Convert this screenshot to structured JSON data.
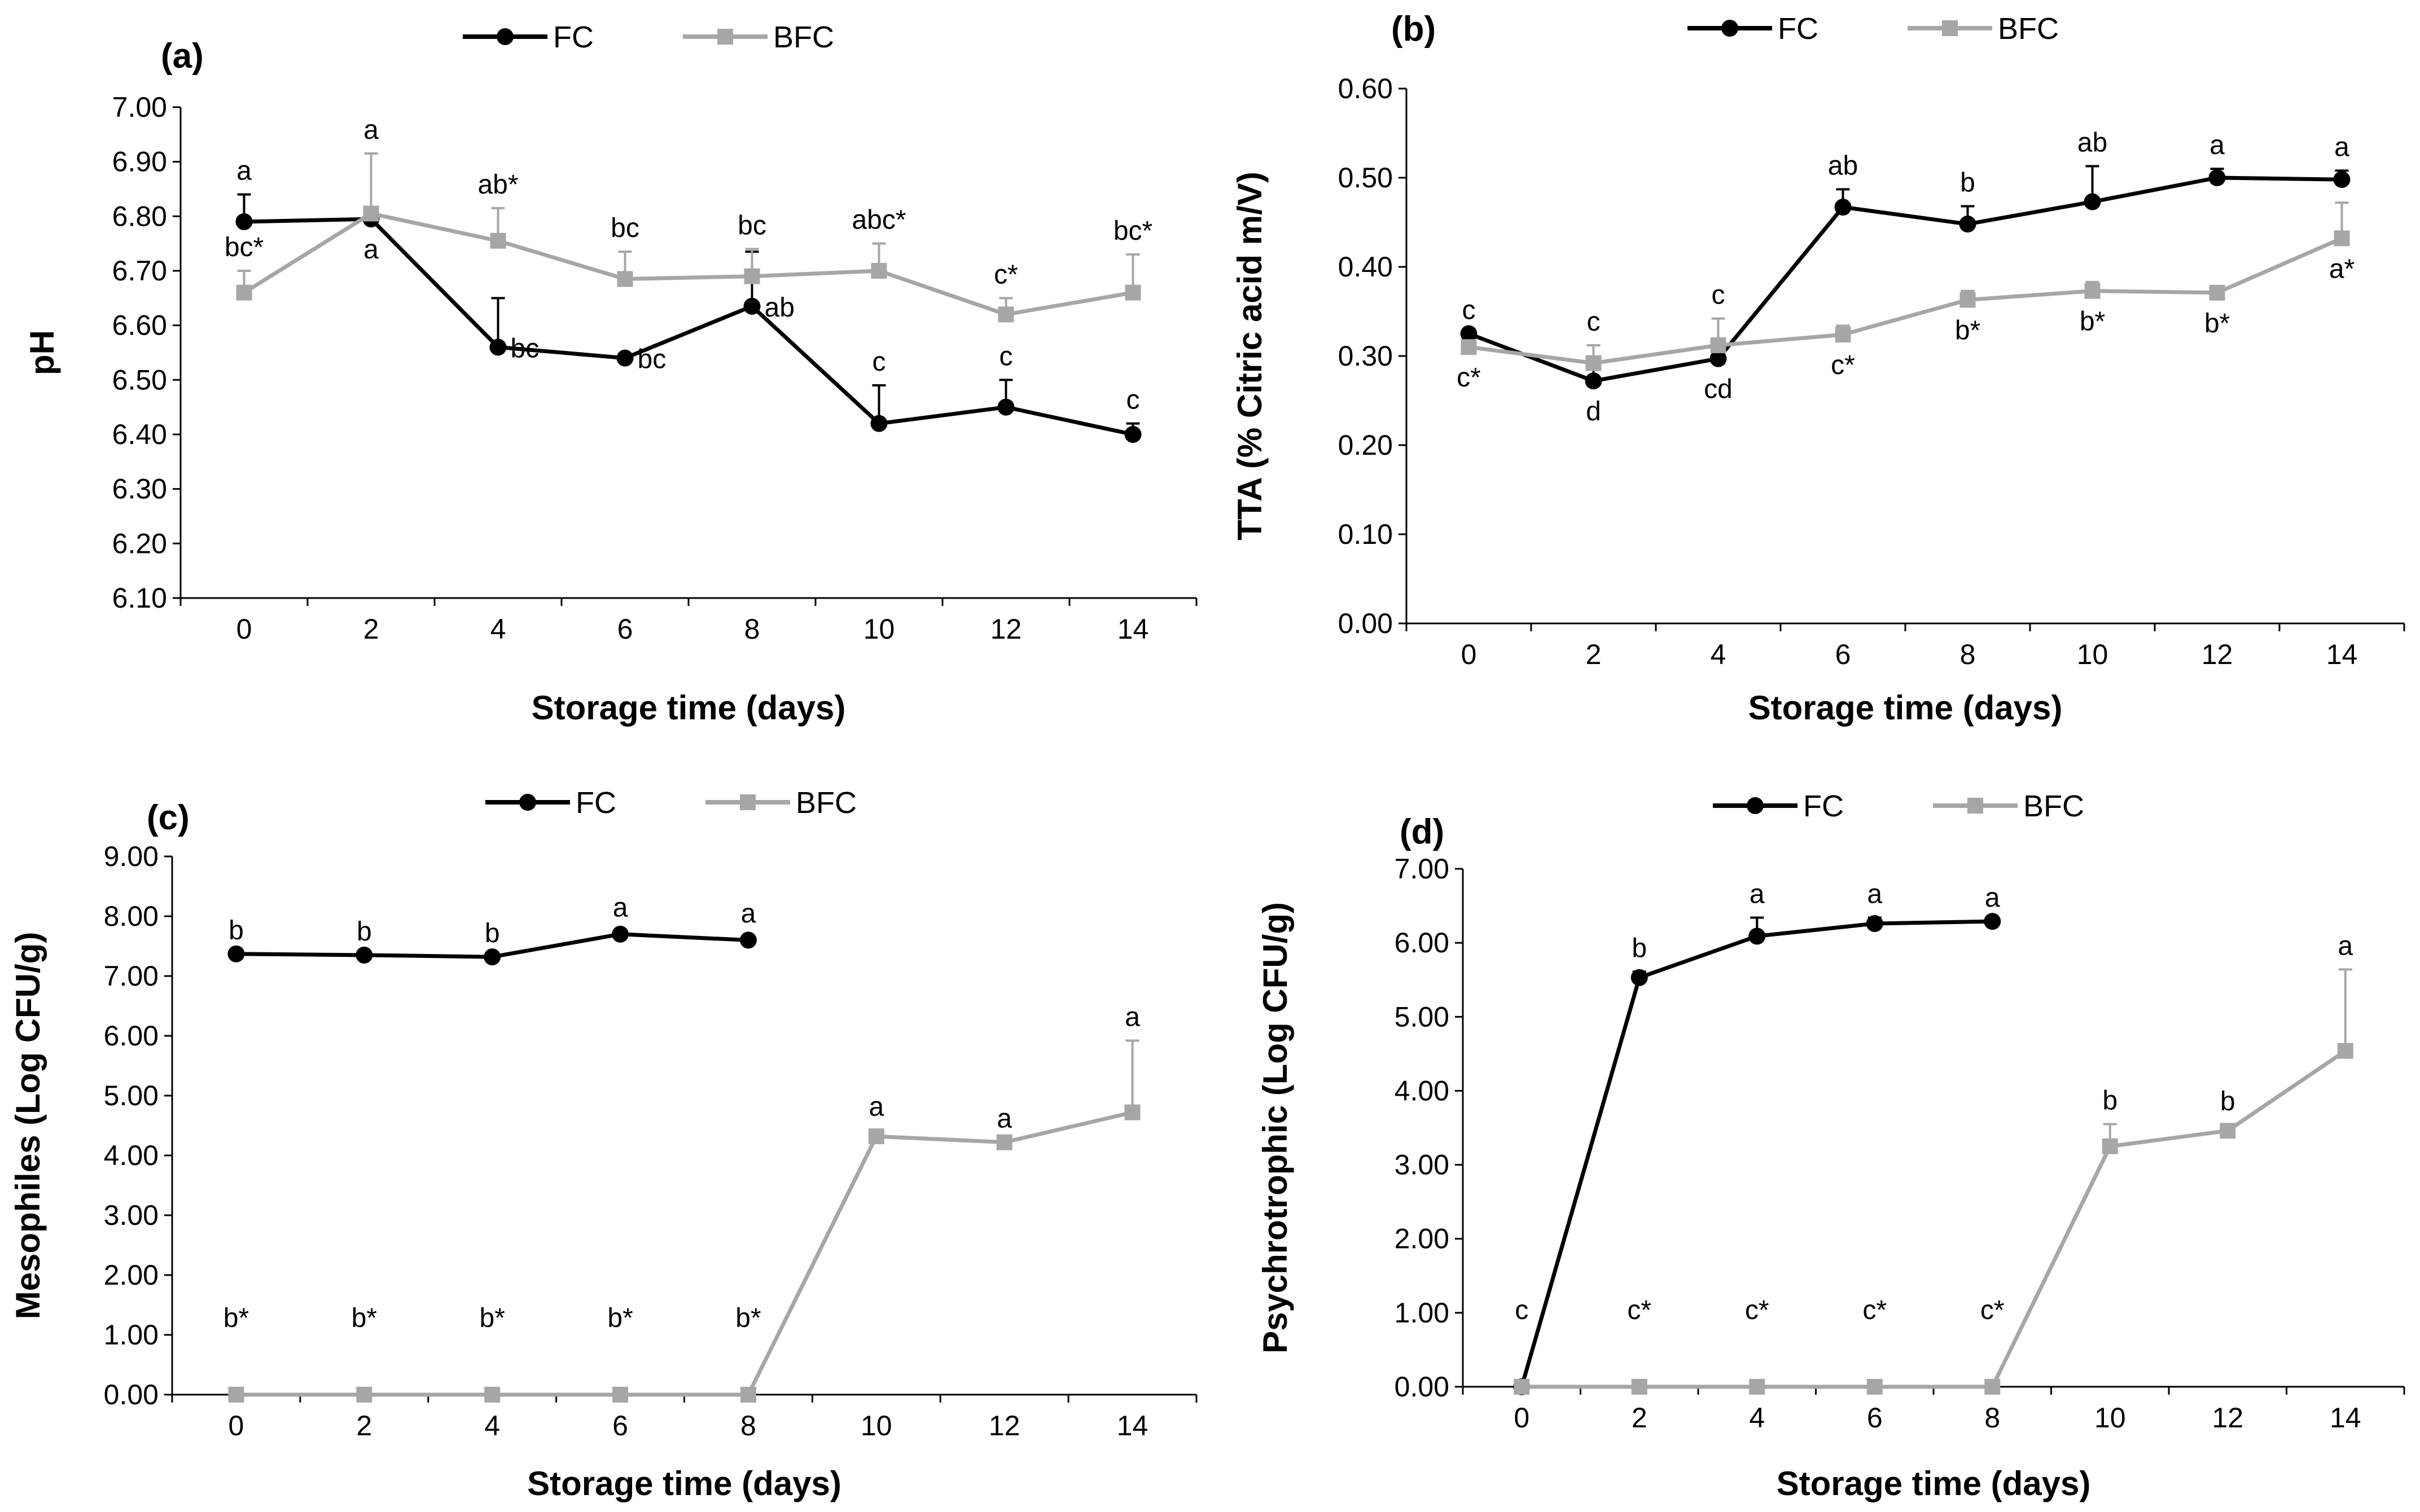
{
  "colors": {
    "FC": "#000000",
    "BFC": "#a6a6a6",
    "axis": "#000000"
  },
  "chart_data": [
    {
      "id": "a",
      "type": "line",
      "panel_label": "(a)",
      "title": "",
      "xlabel": "Storage time (days)",
      "ylabel": "pH",
      "ylim": [
        6.1,
        7.0
      ],
      "yticks": [
        6.1,
        6.2,
        6.3,
        6.4,
        6.5,
        6.6,
        6.7,
        6.8,
        6.9,
        7.0
      ],
      "ytick_labels": [
        "6.10",
        "6.20",
        "6.30",
        "6.40",
        "6.50",
        "6.60",
        "6.70",
        "6.80",
        "6.90",
        "7.00"
      ],
      "categories": [
        "0",
        "2",
        "4",
        "6",
        "8",
        "10",
        "12",
        "14"
      ],
      "legend": [
        "FC",
        "BFC"
      ],
      "series": [
        {
          "name": "FC",
          "values": [
            6.79,
            6.795,
            6.56,
            6.54,
            6.635,
            6.42,
            6.45,
            6.4
          ],
          "errors": [
            0.05,
            0,
            0.09,
            0,
            0.1,
            0.07,
            0.05,
            0.02
          ],
          "labels": [
            "a",
            "a",
            "bc",
            "bc",
            "ab",
            "c",
            "c",
            "c"
          ],
          "label_pos": [
            "above",
            "below",
            "right",
            "right",
            "right",
            "above",
            "above",
            "above"
          ]
        },
        {
          "name": "BFC",
          "values": [
            6.66,
            6.805,
            6.755,
            6.685,
            6.69,
            6.7,
            6.62,
            6.66
          ],
          "errors": [
            0.04,
            0.11,
            0.06,
            0.05,
            0.05,
            0.05,
            0.03,
            0.07
          ],
          "labels": [
            "bc*",
            "a",
            "ab*",
            "bc",
            "bc",
            "abc*",
            "c*",
            "bc*"
          ],
          "label_pos": [
            "above",
            "above",
            "above",
            "above",
            "above",
            "above",
            "above",
            "above"
          ]
        }
      ]
    },
    {
      "id": "b",
      "type": "line",
      "panel_label": "(b)",
      "title": "",
      "xlabel": "Storage time (days)",
      "ylabel": "TTA (% Citric acid m/V)",
      "ylim": [
        0.0,
        0.6
      ],
      "yticks": [
        0.0,
        0.1,
        0.2,
        0.3,
        0.4,
        0.5,
        0.6
      ],
      "ytick_labels": [
        "0.00",
        "0.10",
        "0.20",
        "0.30",
        "0.40",
        "0.50",
        "0.60"
      ],
      "categories": [
        "0",
        "2",
        "4",
        "6",
        "8",
        "10",
        "12",
        "14"
      ],
      "legend": [
        "FC",
        "BFC"
      ],
      "series": [
        {
          "name": "FC",
          "values": [
            0.325,
            0.272,
            0.297,
            0.467,
            0.448,
            0.473,
            0.5,
            0.498
          ],
          "errors": [
            0,
            0.02,
            0.015,
            0.02,
            0.02,
            0.04,
            0.01,
            0.01
          ],
          "labels": [
            "c",
            "d",
            "cd",
            "ab",
            "b",
            "ab",
            "a",
            "a"
          ],
          "label_pos": [
            "above",
            "below",
            "below",
            "above",
            "above",
            "above",
            "above",
            "above"
          ]
        },
        {
          "name": "BFC",
          "values": [
            0.31,
            0.292,
            0.312,
            0.324,
            0.363,
            0.373,
            0.371,
            0.432
          ],
          "errors": [
            0,
            0.02,
            0.03,
            0.01,
            0.01,
            0.01,
            0,
            0.04
          ],
          "labels": [
            "c*",
            "c",
            "c",
            "c*",
            "b*",
            "b*",
            "b*",
            "a*"
          ],
          "label_pos": [
            "below",
            "above",
            "above",
            "below",
            "below",
            "below",
            "below",
            "below"
          ]
        }
      ]
    },
    {
      "id": "c",
      "type": "line",
      "panel_label": "(c)",
      "title": "",
      "xlabel": "Storage time (days)",
      "ylabel": "Mesophiles (Log CFU/g)",
      "ylim": [
        0.0,
        9.0
      ],
      "yticks": [
        0,
        1,
        2,
        3,
        4,
        5,
        6,
        7,
        8,
        9
      ],
      "ytick_labels": [
        "0.00",
        "1.00",
        "2.00",
        "3.00",
        "4.00",
        "5.00",
        "6.00",
        "7.00",
        "8.00",
        "9.00"
      ],
      "categories": [
        "0",
        "2",
        "4",
        "6",
        "8",
        "10",
        "12",
        "14"
      ],
      "legend": [
        "FC",
        "BFC"
      ],
      "series": [
        {
          "name": "FC",
          "values": [
            7.37,
            7.35,
            7.32,
            7.7,
            7.6,
            null,
            null,
            null
          ],
          "errors": [
            0,
            0,
            0,
            0.05,
            0.05,
            0,
            0,
            0
          ],
          "labels": [
            "b",
            "b",
            "b",
            "a",
            "a",
            "",
            "",
            ""
          ],
          "label_pos": [
            "above",
            "above",
            "above",
            "above",
            "above",
            "above",
            "above",
            "above"
          ]
        },
        {
          "name": "BFC",
          "values": [
            0,
            0,
            0,
            0,
            0,
            4.32,
            4.22,
            4.72
          ],
          "errors": [
            0,
            0,
            0,
            0,
            0,
            0.1,
            0,
            1.2
          ],
          "labels": [
            "b*",
            "b*",
            "b*",
            "b*",
            "b*",
            "a",
            "a",
            "a"
          ],
          "label_pos": [
            "far-above",
            "far-above",
            "far-above",
            "far-above",
            "far-above",
            "above",
            "above",
            "above"
          ]
        }
      ]
    },
    {
      "id": "d",
      "type": "line",
      "panel_label": "(d)",
      "title": "",
      "xlabel": "Storage time (days)",
      "ylabel": "Psychrotrophic (Log CFU/g)",
      "ylim": [
        0.0,
        7.0
      ],
      "yticks": [
        0,
        1,
        2,
        3,
        4,
        5,
        6,
        7
      ],
      "ytick_labels": [
        "0.00",
        "1.00",
        "2.00",
        "3.00",
        "4.00",
        "5.00",
        "6.00",
        "7.00"
      ],
      "categories": [
        "0",
        "2",
        "4",
        "6",
        "8",
        "10",
        "12",
        "14"
      ],
      "legend": [
        "FC",
        "BFC"
      ],
      "series": [
        {
          "name": "FC",
          "values": [
            0,
            5.53,
            6.09,
            6.26,
            6.29,
            null,
            null,
            null
          ],
          "errors": [
            0,
            0.08,
            0.25,
            0.08,
            0,
            0,
            0,
            0
          ],
          "labels": [
            "c",
            "b",
            "a",
            "a",
            "a",
            "",
            "",
            ""
          ],
          "label_pos": [
            "far-above",
            "above",
            "above",
            "above",
            "above",
            "above",
            "above",
            "above"
          ]
        },
        {
          "name": "BFC",
          "values": [
            0,
            0,
            0,
            0,
            0,
            3.25,
            3.46,
            4.54
          ],
          "errors": [
            0,
            0,
            0,
            0,
            0,
            0.3,
            0.08,
            1.1
          ],
          "labels": [
            "",
            "c*",
            "c*",
            "c*",
            "c*",
            "b",
            "b",
            "a"
          ],
          "label_pos": [
            "far-above",
            "far-above",
            "far-above",
            "far-above",
            "far-above",
            "above",
            "above",
            "above"
          ]
        }
      ]
    }
  ]
}
